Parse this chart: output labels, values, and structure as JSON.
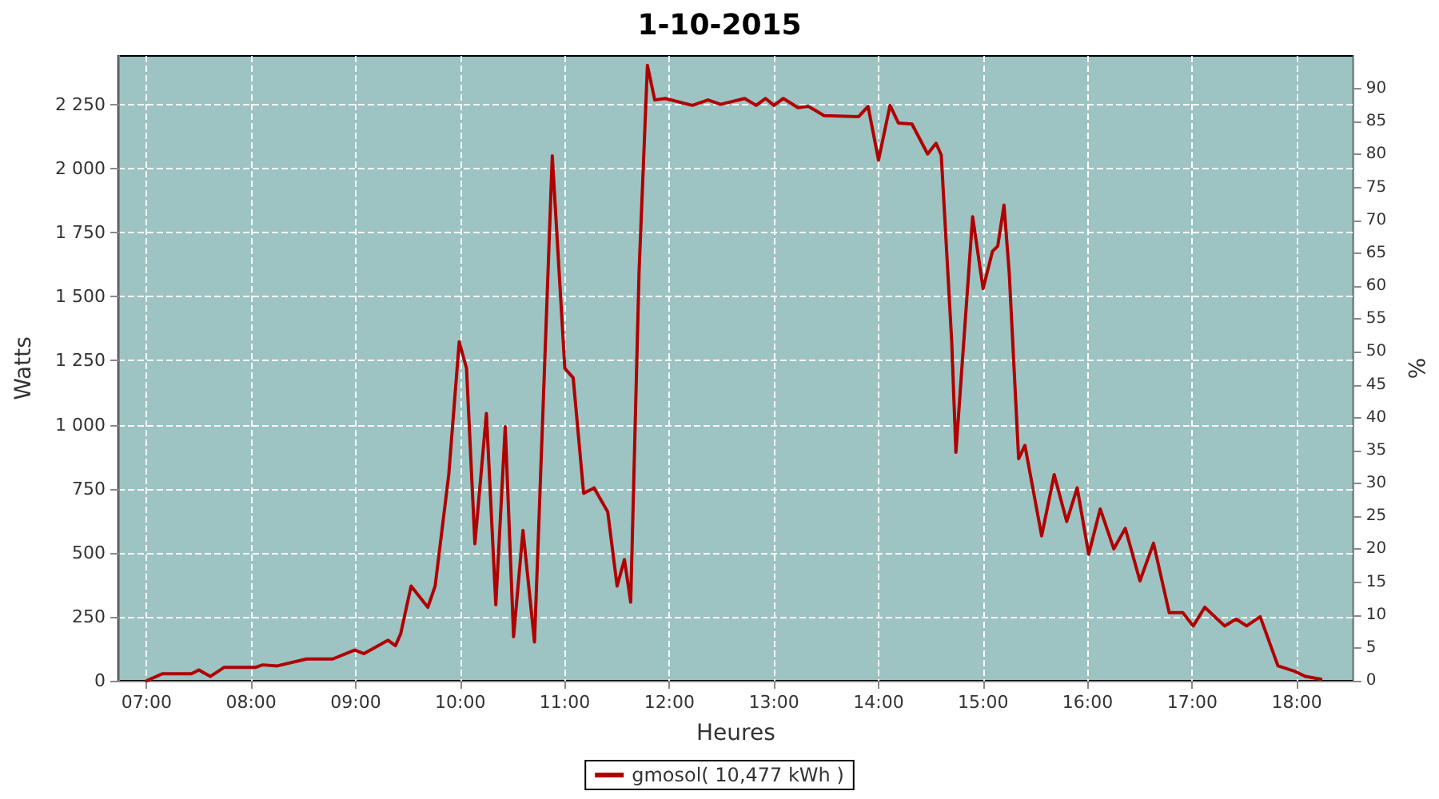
{
  "chart_data": {
    "type": "line",
    "title": "1-10-2015",
    "xlabel": "Heures",
    "ylabel": "Watts",
    "y2label": "%",
    "xlim": [
      6.73,
      18.54
    ],
    "xticks": [
      {
        "value": 7,
        "label": "07:00"
      },
      {
        "value": 8,
        "label": "08:00"
      },
      {
        "value": 9,
        "label": "09:00"
      },
      {
        "value": 10,
        "label": "10:00"
      },
      {
        "value": 11,
        "label": "11:00"
      },
      {
        "value": 12,
        "label": "12:00"
      },
      {
        "value": 13,
        "label": "13:00"
      },
      {
        "value": 14,
        "label": "14:00"
      },
      {
        "value": 15,
        "label": "15:00"
      },
      {
        "value": 16,
        "label": "16:00"
      },
      {
        "value": 17,
        "label": "17:00"
      },
      {
        "value": 18,
        "label": "18:00"
      }
    ],
    "ylim": [
      0,
      2440
    ],
    "yticks": [
      0,
      250,
      500,
      750,
      {
        "value": 1000,
        "label": "1 000"
      },
      {
        "value": 1250,
        "label": "1 250"
      },
      {
        "value": 1500,
        "label": "1 500"
      },
      {
        "value": 1750,
        "label": "1 750"
      },
      {
        "value": 2000,
        "label": "2 000"
      },
      {
        "value": 2250,
        "label": "2 250"
      }
    ],
    "y2lim": [
      0,
      95
    ],
    "y2ticks": [
      0,
      5,
      10,
      15,
      20,
      25,
      30,
      35,
      40,
      45,
      50,
      55,
      60,
      65,
      70,
      75,
      80,
      85,
      90
    ],
    "grid": true,
    "legend": "bottom",
    "marker": "none",
    "line_style": "solid",
    "series": [
      {
        "name": "gmosol( 10,477 kWh )",
        "color": "#b00000",
        "x": [
          7.0,
          7.15,
          7.43,
          7.5,
          7.61,
          7.74,
          8.04,
          8.11,
          8.25,
          8.53,
          8.78,
          8.99,
          9.08,
          9.31,
          9.38,
          9.43,
          9.53,
          9.69,
          9.76,
          9.89,
          9.99,
          10.06,
          10.14,
          10.25,
          10.34,
          10.43,
          10.51,
          10.6,
          10.71,
          10.88,
          11.0,
          11.08,
          11.18,
          11.28,
          11.41,
          11.5,
          11.57,
          11.63,
          11.71,
          11.79,
          11.86,
          11.96,
          12.22,
          12.37,
          12.49,
          12.72,
          12.83,
          12.92,
          13.0,
          13.09,
          13.23,
          13.33,
          13.48,
          13.81,
          13.9,
          14.0,
          14.11,
          14.19,
          14.32,
          14.47,
          14.55,
          14.6,
          14.7,
          14.74,
          14.9,
          15.0,
          15.09,
          15.14,
          15.2,
          15.25,
          15.34,
          15.4,
          15.56,
          15.68,
          15.8,
          15.9,
          16.01,
          16.12,
          16.25,
          16.36,
          16.5,
          16.63,
          16.78,
          16.91,
          17.01,
          17.12,
          17.31,
          17.42,
          17.52,
          17.65,
          17.82,
          17.98,
          18.08,
          18.23
        ],
        "values": [
          0,
          27,
          27,
          42,
          17,
          52,
          52,
          62,
          58,
          85,
          85,
          120,
          106,
          158,
          137,
          183,
          370,
          287,
          370,
          805,
          1324,
          1220,
          535,
          1044,
          297,
          992,
          172,
          587,
          151,
          2050,
          1220,
          1183,
          732,
          753,
          660,
          370,
          473,
          307,
          1598,
          2403,
          2268,
          2274,
          2247,
          2268,
          2251,
          2274,
          2247,
          2274,
          2247,
          2274,
          2238,
          2243,
          2207,
          2203,
          2243,
          2033,
          2247,
          2178,
          2174,
          2057,
          2099,
          2053,
          1324,
          892,
          1812,
          1531,
          1677,
          1697,
          1857,
          1593,
          867,
          919,
          566,
          805,
          622,
          753,
          494,
          671,
          515,
          595,
          390,
          537,
          266,
          266,
          214,
          287,
          214,
          241,
          214,
          250,
          58,
          37,
          17,
          6
        ]
      }
    ]
  }
}
